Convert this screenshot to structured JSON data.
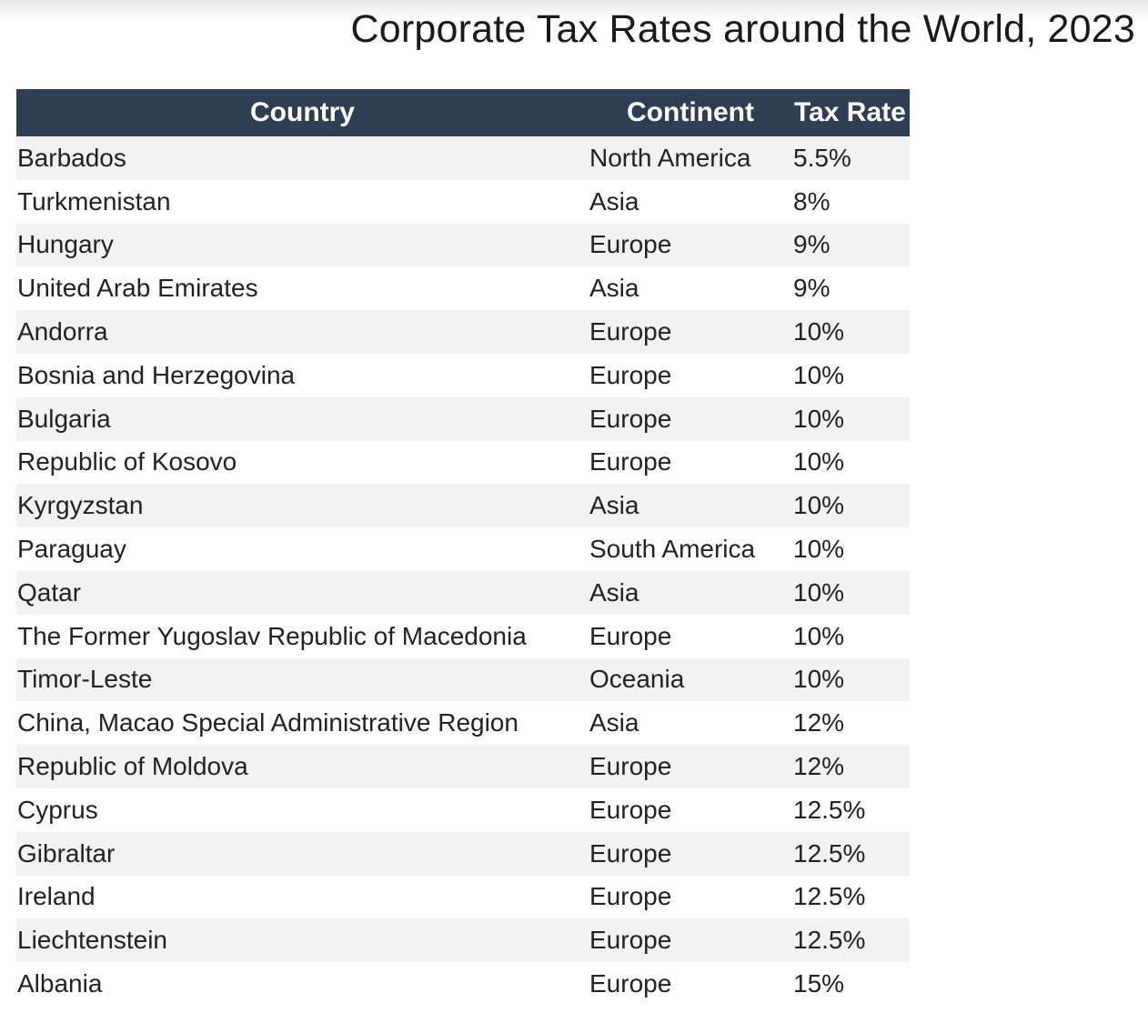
{
  "title": "Corporate Tax Rates around the World, 2023",
  "table": {
    "headers": [
      "Country",
      "Continent",
      "Tax Rate"
    ],
    "rows": [
      [
        "Barbados",
        "North America",
        "5.5%"
      ],
      [
        "Turkmenistan",
        "Asia",
        "8%"
      ],
      [
        "Hungary",
        "Europe",
        "9%"
      ],
      [
        "United Arab Emirates",
        "Asia",
        "9%"
      ],
      [
        "Andorra",
        "Europe",
        "10%"
      ],
      [
        "Bosnia and Herzegovina",
        "Europe",
        "10%"
      ],
      [
        "Bulgaria",
        "Europe",
        "10%"
      ],
      [
        "Republic of Kosovo",
        "Europe",
        "10%"
      ],
      [
        "Kyrgyzstan",
        "Asia",
        "10%"
      ],
      [
        "Paraguay",
        "South America",
        "10%"
      ],
      [
        "Qatar",
        "Asia",
        "10%"
      ],
      [
        "The Former Yugoslav Republic of Macedonia",
        "Europe",
        "10%"
      ],
      [
        "Timor-Leste",
        "Oceania",
        "10%"
      ],
      [
        "China, Macao Special Administrative Region",
        "Asia",
        "12%"
      ],
      [
        "Republic of Moldova",
        "Europe",
        "12%"
      ],
      [
        "Cyprus",
        "Europe",
        "12.5%"
      ],
      [
        "Gibraltar",
        "Europe",
        "12.5%"
      ],
      [
        "Ireland",
        "Europe",
        "12.5%"
      ],
      [
        "Liechtenstein",
        "Europe",
        "12.5%"
      ],
      [
        "Albania",
        "Europe",
        "15%"
      ]
    ]
  },
  "colors": {
    "header_bg": "#2f3e52",
    "header_text": "#ffffff",
    "row_alt": "#f2f2f2"
  }
}
